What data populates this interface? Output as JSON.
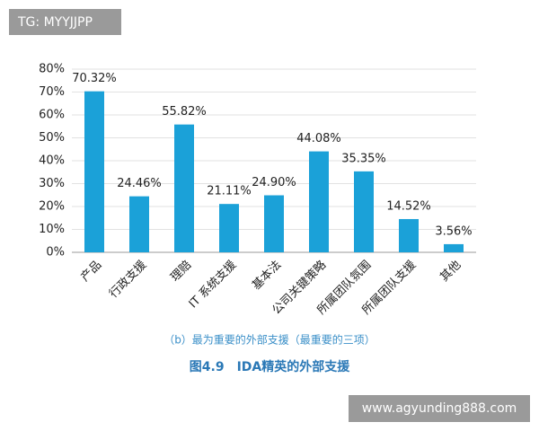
{
  "chart_data": {
    "type": "bar",
    "subtitle": "（b）最为重要的外部支援（最重要的三项）",
    "title": "图4.9　IDA精英的外部支援",
    "categories": [
      "产品",
      "行政支援",
      "理赔",
      "IT 系统支援",
      "基本法",
      "公司关键策略",
      "所属团队氛围",
      "所属团队支援",
      "其他"
    ],
    "values": [
      70.32,
      24.46,
      55.82,
      21.11,
      24.9,
      44.08,
      35.35,
      14.52,
      3.56
    ],
    "value_labels": [
      "70.32%",
      "24.46%",
      "55.82%",
      "21.11%",
      "24.90%",
      "44.08%",
      "35.35%",
      "14.52%",
      "3.56%"
    ],
    "color": "#1ba1d8",
    "ylim": [
      0,
      80
    ],
    "yticks": [
      {
        "value": 0,
        "label": "0%"
      },
      {
        "value": 10,
        "label": "10%"
      },
      {
        "value": 20,
        "label": "20%"
      },
      {
        "value": 30,
        "label": "30%"
      },
      {
        "value": 40,
        "label": "40%"
      },
      {
        "value": 50,
        "label": "50%"
      },
      {
        "value": 60,
        "label": "60%"
      },
      {
        "value": 70,
        "label": "70%"
      },
      {
        "value": 80,
        "label": "80%"
      }
    ],
    "grid": true
  },
  "watermarks": [
    "TG: MYYJJPP",
    "www.agyunding888.com"
  ]
}
